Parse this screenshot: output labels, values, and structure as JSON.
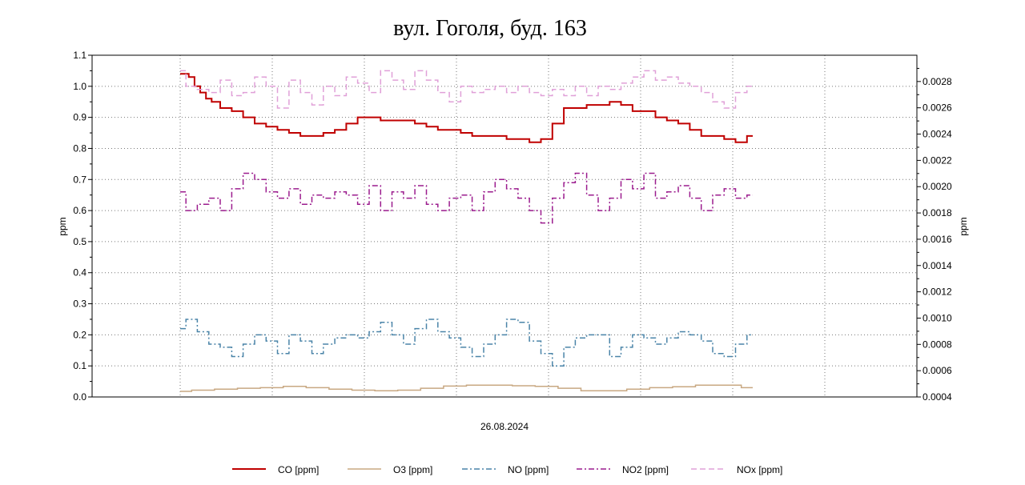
{
  "chart_data": {
    "type": "line",
    "title": "вул. Гоголя, буд. 163",
    "xlabel": "26.08.2024",
    "ylabel": "ppm",
    "ylabel_right": "ppm",
    "x_range": [
      0,
      100
    ],
    "ylim": [
      0,
      1.1
    ],
    "ylim_right": [
      0.0004,
      0.003
    ],
    "y_ticks": [
      "0.0",
      "0.1",
      "0.2",
      "0.3",
      "0.4",
      "0.5",
      "0.6",
      "0.7",
      "0.8",
      "0.9",
      "1.0",
      "1.1"
    ],
    "y_ticks_right": [
      "0.0004",
      "0.0006",
      "0.0008",
      "0.0010",
      "0.0012",
      "0.0014",
      "0.0016",
      "0.0018",
      "0.0020",
      "0.0022",
      "0.0024",
      "0.0026",
      "0.0028"
    ],
    "grid": true,
    "legend_position": "bottom",
    "series": [
      {
        "name": "CO [ppm]",
        "color": "#c00000",
        "dash": "solid",
        "axis": "left",
        "x": [
          0,
          1,
          2,
          3,
          4,
          5,
          6,
          8,
          10,
          12,
          14,
          16,
          18,
          20,
          22,
          24,
          26,
          28,
          30,
          32,
          34,
          36,
          38,
          40,
          42,
          44,
          46,
          48,
          50,
          52,
          54,
          56,
          58,
          60,
          62,
          64,
          66,
          68,
          70,
          72,
          74,
          76,
          78,
          80,
          82,
          84,
          86,
          88,
          90,
          92,
          94,
          96,
          98,
          100
        ],
        "values": [
          1.04,
          1.04,
          1.03,
          1.0,
          0.98,
          0.96,
          0.95,
          0.93,
          0.92,
          0.9,
          0.88,
          0.87,
          0.86,
          0.85,
          0.84,
          0.84,
          0.85,
          0.86,
          0.88,
          0.9,
          0.9,
          0.89,
          0.89,
          0.89,
          0.88,
          0.87,
          0.86,
          0.86,
          0.85,
          0.84,
          0.84,
          0.84,
          0.83,
          0.83,
          0.82,
          0.83,
          0.88,
          0.93,
          0.93,
          0.94,
          0.94,
          0.95,
          0.94,
          0.92,
          0.92,
          0.9,
          0.89,
          0.88,
          0.86,
          0.84,
          0.84,
          0.83,
          0.82,
          0.84
        ]
      },
      {
        "name": "O3 [ppm]",
        "color": "#c8a882",
        "dash": "solid",
        "axis": "left",
        "x": [
          0,
          4,
          8,
          12,
          16,
          20,
          24,
          28,
          32,
          36,
          40,
          44,
          48,
          52,
          56,
          60,
          64,
          68,
          72,
          76,
          80,
          84,
          88,
          92,
          96,
          100
        ],
        "values": [
          0.018,
          0.022,
          0.025,
          0.028,
          0.03,
          0.034,
          0.03,
          0.025,
          0.022,
          0.02,
          0.022,
          0.028,
          0.035,
          0.038,
          0.038,
          0.036,
          0.034,
          0.028,
          0.02,
          0.02,
          0.025,
          0.03,
          0.033,
          0.038,
          0.038,
          0.03
        ]
      },
      {
        "name": "NO [ppm]",
        "color": "#4a84a8",
        "dash": "dashdot",
        "axis": "left",
        "x": [
          0,
          2,
          4,
          6,
          8,
          10,
          12,
          14,
          16,
          18,
          20,
          22,
          24,
          26,
          28,
          30,
          32,
          34,
          36,
          38,
          40,
          42,
          44,
          46,
          48,
          50,
          52,
          54,
          56,
          58,
          60,
          62,
          64,
          66,
          68,
          70,
          72,
          74,
          76,
          78,
          80,
          82,
          84,
          86,
          88,
          90,
          92,
          94,
          96,
          98,
          100
        ],
        "values": [
          0.22,
          0.25,
          0.21,
          0.17,
          0.16,
          0.13,
          0.17,
          0.2,
          0.18,
          0.14,
          0.2,
          0.18,
          0.14,
          0.17,
          0.19,
          0.2,
          0.19,
          0.21,
          0.24,
          0.2,
          0.17,
          0.22,
          0.25,
          0.21,
          0.19,
          0.16,
          0.13,
          0.17,
          0.2,
          0.25,
          0.24,
          0.18,
          0.14,
          0.1,
          0.16,
          0.19,
          0.2,
          0.2,
          0.13,
          0.16,
          0.2,
          0.19,
          0.17,
          0.19,
          0.21,
          0.2,
          0.18,
          0.14,
          0.13,
          0.17,
          0.2
        ]
      },
      {
        "name": "NO2 [ppm]",
        "color": "#9b1c8e",
        "dash": "dashdot",
        "axis": "left",
        "x": [
          0,
          2,
          4,
          6,
          8,
          10,
          12,
          14,
          16,
          18,
          20,
          22,
          24,
          26,
          28,
          30,
          32,
          34,
          36,
          38,
          40,
          42,
          44,
          46,
          48,
          50,
          52,
          54,
          56,
          58,
          60,
          62,
          64,
          66,
          68,
          70,
          72,
          74,
          76,
          78,
          80,
          82,
          84,
          86,
          88,
          90,
          92,
          94,
          96,
          98,
          100
        ],
        "values": [
          0.66,
          0.6,
          0.62,
          0.64,
          0.6,
          0.67,
          0.72,
          0.7,
          0.66,
          0.64,
          0.67,
          0.62,
          0.65,
          0.64,
          0.66,
          0.65,
          0.62,
          0.68,
          0.6,
          0.66,
          0.64,
          0.68,
          0.62,
          0.6,
          0.64,
          0.65,
          0.6,
          0.66,
          0.7,
          0.67,
          0.64,
          0.6,
          0.56,
          0.64,
          0.69,
          0.72,
          0.65,
          0.6,
          0.64,
          0.7,
          0.67,
          0.72,
          0.64,
          0.66,
          0.68,
          0.64,
          0.6,
          0.65,
          0.67,
          0.64,
          0.65
        ]
      },
      {
        "name": "NOx [ppm]",
        "color": "#e0a0d8",
        "dash": "dash",
        "axis": "left",
        "x": [
          0,
          2,
          4,
          6,
          8,
          10,
          12,
          14,
          16,
          18,
          20,
          22,
          24,
          26,
          28,
          30,
          32,
          34,
          36,
          38,
          40,
          42,
          44,
          46,
          48,
          50,
          52,
          54,
          56,
          58,
          60,
          62,
          64,
          66,
          68,
          70,
          72,
          74,
          76,
          78,
          80,
          82,
          84,
          86,
          88,
          90,
          92,
          94,
          96,
          98,
          100
        ],
        "values": [
          1.05,
          1.0,
          0.99,
          0.98,
          1.02,
          0.97,
          0.98,
          1.03,
          1.0,
          0.93,
          1.02,
          0.98,
          0.94,
          1.0,
          0.97,
          1.03,
          1.01,
          0.98,
          1.05,
          1.02,
          0.99,
          1.05,
          1.02,
          0.98,
          0.95,
          1.0,
          0.98,
          0.99,
          1.0,
          0.98,
          1.0,
          0.98,
          0.97,
          0.99,
          0.97,
          1.0,
          0.97,
          1.0,
          0.99,
          1.01,
          1.03,
          1.05,
          1.02,
          1.03,
          1.01,
          1.0,
          0.98,
          0.95,
          0.93,
          0.98,
          1.0
        ]
      }
    ]
  }
}
